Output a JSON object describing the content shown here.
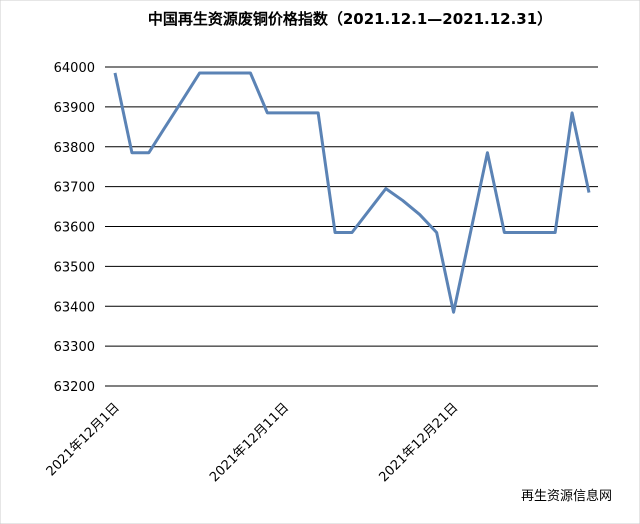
{
  "chart_data": {
    "type": "line",
    "title": "中国再生资源废铜价格指数（2021.12.1—2021.12.31）",
    "categories": [
      "2021年12月1日",
      null,
      null,
      null,
      null,
      null,
      null,
      null,
      null,
      null,
      "2021年12月11日",
      null,
      null,
      null,
      null,
      null,
      null,
      null,
      null,
      null,
      "2021年12月21日",
      null,
      null,
      null,
      null,
      null,
      null,
      null,
      null
    ],
    "series": [
      {
        "name": "废铜价格指数",
        "color": "#5b83b5",
        "values": [
          63985,
          63785,
          63785,
          63852,
          63918,
          63985,
          63985,
          63985,
          63985,
          63885,
          63885,
          63885,
          63885,
          63585,
          63585,
          63640,
          63695,
          63665,
          63630,
          63585,
          63385,
          63585,
          63785,
          63585,
          63585,
          63585,
          63585,
          63885,
          63685
        ]
      }
    ],
    "ylim": [
      63200,
      64000
    ],
    "yticks": [
      63200,
      63300,
      63400,
      63500,
      63600,
      63700,
      63800,
      63900,
      64000
    ],
    "grid": true,
    "watermark": "再生资源信息网"
  }
}
